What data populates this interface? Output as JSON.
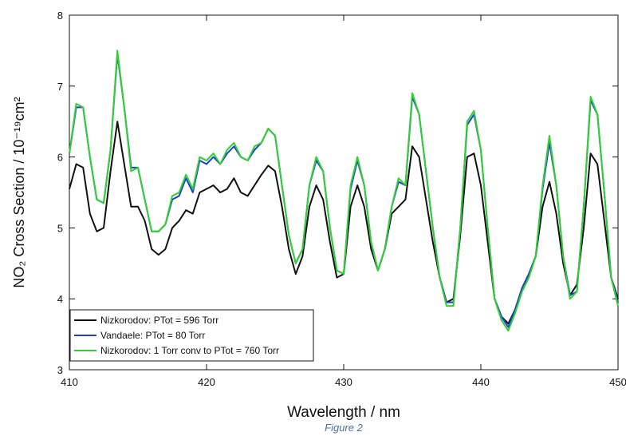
{
  "chart_data": {
    "type": "line",
    "xlabel": "Wavelength / nm",
    "ylabel": "NO₂ Cross Section / 10⁻¹⁹cm²",
    "caption": "Figure 2",
    "xlim": [
      410,
      450
    ],
    "xticks": [
      410,
      420,
      430,
      440,
      450
    ],
    "ylim": [
      3,
      8
    ],
    "yticks": [
      3,
      4,
      5,
      6,
      7,
      8
    ],
    "legend": "lower left",
    "x": [
      410,
      410.5,
      411,
      411.5,
      412,
      412.5,
      413,
      413.5,
      414,
      414.5,
      415,
      415.5,
      416,
      416.5,
      417,
      417.5,
      418,
      418.5,
      419,
      419.5,
      420,
      420.5,
      421,
      421.5,
      422,
      422.5,
      423,
      423.5,
      424,
      424.5,
      425,
      425.5,
      426,
      426.5,
      427,
      427.5,
      428,
      428.5,
      429,
      429.5,
      430,
      430.5,
      431,
      431.5,
      432,
      432.5,
      433,
      433.5,
      434,
      434.5,
      435,
      435.5,
      436,
      436.5,
      437,
      437.5,
      438,
      438.5,
      439,
      439.5,
      440,
      440.5,
      441,
      441.5,
      442,
      442.5,
      443,
      443.5,
      444,
      444.5,
      445,
      445.5,
      446,
      446.5,
      447,
      447.5,
      448,
      448.5,
      449,
      449.5,
      450
    ],
    "series": [
      {
        "name": "Nizkorodov: PTot = 596 Torr",
        "color": "#111111",
        "values": [
          5.55,
          5.9,
          5.85,
          5.2,
          4.95,
          5.0,
          5.8,
          6.5,
          5.9,
          5.3,
          5.3,
          5.1,
          4.7,
          4.62,
          4.7,
          5.0,
          5.1,
          5.25,
          5.2,
          5.5,
          5.55,
          5.6,
          5.5,
          5.55,
          5.7,
          5.5,
          5.45,
          5.6,
          5.75,
          5.88,
          5.8,
          5.3,
          4.7,
          4.35,
          4.6,
          5.3,
          5.6,
          5.4,
          4.8,
          4.3,
          4.35,
          5.3,
          5.6,
          5.3,
          4.7,
          4.4,
          4.7,
          5.2,
          5.3,
          5.4,
          6.15,
          6.0,
          5.4,
          4.8,
          4.3,
          3.95,
          4.0,
          4.9,
          6.0,
          6.05,
          5.6,
          4.8,
          4.0,
          3.75,
          3.65,
          3.85,
          4.15,
          4.35,
          4.6,
          5.3,
          5.65,
          5.2,
          4.5,
          4.05,
          4.2,
          5.0,
          6.05,
          5.9,
          5.1,
          4.3,
          4.0
        ]
      },
      {
        "name": "Vandaele: PTot = 80 Torr",
        "color": "#1f3fd6",
        "values": [
          6.05,
          6.7,
          6.7,
          6.0,
          5.4,
          5.35,
          6.1,
          7.45,
          6.7,
          5.85,
          5.85,
          5.4,
          4.95,
          4.95,
          5.05,
          5.4,
          5.45,
          5.7,
          5.5,
          5.95,
          5.9,
          6.0,
          5.9,
          6.05,
          6.15,
          6.0,
          5.95,
          6.1,
          6.2,
          6.4,
          6.3,
          5.6,
          4.9,
          4.5,
          4.7,
          5.6,
          5.95,
          5.8,
          5.0,
          4.4,
          4.35,
          5.55,
          5.95,
          5.6,
          4.8,
          4.4,
          4.7,
          5.3,
          5.65,
          5.6,
          6.85,
          6.6,
          5.8,
          5.0,
          4.3,
          3.95,
          3.95,
          5.0,
          6.45,
          6.6,
          6.1,
          5.0,
          4.0,
          3.75,
          3.6,
          3.85,
          4.15,
          4.35,
          4.6,
          5.55,
          6.2,
          5.6,
          4.6,
          4.05,
          4.1,
          5.3,
          6.8,
          6.6,
          5.5,
          4.3,
          3.95
        ]
      },
      {
        "name": "Nizkorodov: 1 Torr conv to PTot = 760 Torr",
        "color": "#2fd12f",
        "values": [
          6.05,
          6.75,
          6.7,
          6.0,
          5.4,
          5.35,
          6.1,
          7.5,
          6.7,
          5.8,
          5.85,
          5.4,
          4.95,
          4.95,
          5.05,
          5.45,
          5.5,
          5.75,
          5.55,
          6.0,
          5.95,
          6.05,
          5.9,
          6.1,
          6.2,
          6.0,
          5.95,
          6.15,
          6.2,
          6.4,
          6.3,
          5.6,
          4.9,
          4.5,
          4.7,
          5.6,
          6.0,
          5.8,
          5.0,
          4.4,
          4.35,
          5.6,
          6.0,
          5.6,
          4.8,
          4.4,
          4.7,
          5.3,
          5.7,
          5.6,
          6.9,
          6.6,
          5.8,
          5.0,
          4.3,
          3.9,
          3.9,
          5.0,
          6.5,
          6.65,
          6.1,
          5.0,
          4.0,
          3.7,
          3.55,
          3.8,
          4.1,
          4.3,
          4.6,
          5.6,
          6.3,
          5.6,
          4.6,
          4.0,
          4.1,
          5.3,
          6.85,
          6.6,
          5.5,
          4.3,
          3.9
        ]
      }
    ]
  }
}
